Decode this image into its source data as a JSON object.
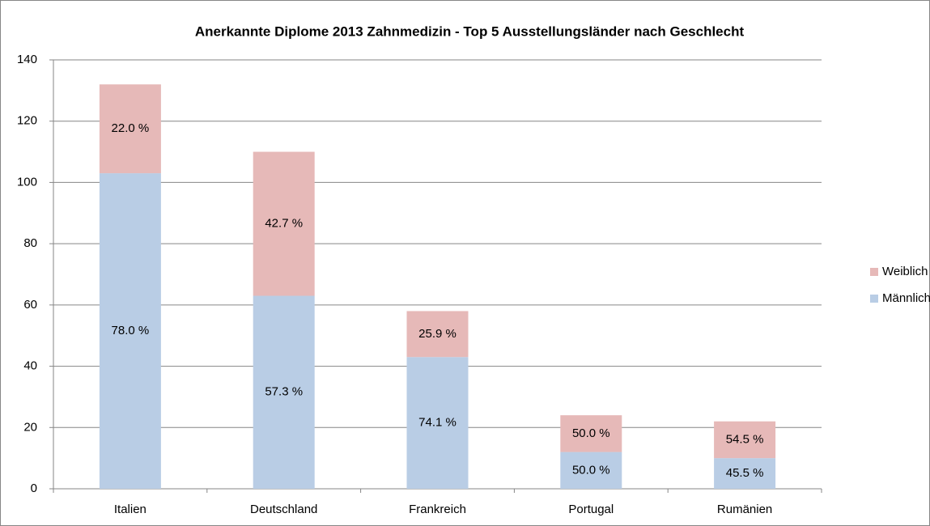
{
  "chart_data": {
    "type": "stacked_bar",
    "title": "Anerkannte Diplome 2013 Zahnmedizin - Top 5 Ausstellungsländer nach Geschlecht",
    "categories": [
      "Italien",
      "Deutschland",
      "Frankreich",
      "Portugal",
      "Rumänien"
    ],
    "series": [
      {
        "name": "Männlich",
        "color": "#b9cde5",
        "values": [
          103,
          63,
          43,
          12,
          10
        ],
        "labels": [
          "78.0 %",
          "57.3 %",
          "74.1 %",
          "50.0 %",
          "45.5 %"
        ]
      },
      {
        "name": "Weiblich",
        "color": "#e6b9b8",
        "values": [
          29,
          47,
          15,
          12,
          12
        ],
        "labels": [
          "22.0 %",
          "42.7 %",
          "25.9 %",
          "50.0 %",
          "54.5 %"
        ]
      }
    ],
    "ylim": [
      0,
      140
    ],
    "yticks": [
      0,
      20,
      40,
      60,
      80,
      100,
      120,
      140
    ],
    "grid": true,
    "legend": "right"
  }
}
